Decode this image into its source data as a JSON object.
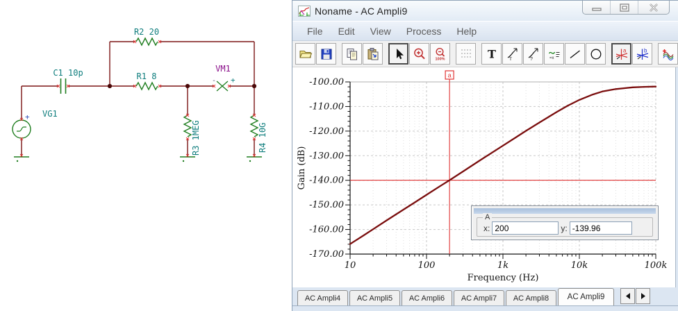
{
  "schematic": {
    "labels": {
      "c1": "C1 10p",
      "r1": "R1 8",
      "r2": "R2 20",
      "r3": "R3 1MEG",
      "r4": "R4 10G",
      "vg1": "VG1",
      "vm1": "VM1"
    },
    "colors": {
      "wire": "#7b1414",
      "component": "#1e7d1e",
      "label": "#0e7d7d",
      "meter_label": "#8a0f8a",
      "pin_marker": "#e03030",
      "junction": "#4a0808"
    }
  },
  "window": {
    "title": "Noname - AC Ampli9",
    "icon": "diagram-window-icon",
    "controls": [
      "minimize",
      "maximize",
      "close"
    ],
    "menu": [
      "File",
      "Edit",
      "View",
      "Process",
      "Help"
    ],
    "toolbar_groups": [
      [
        "open",
        "save"
      ],
      [
        "copy",
        "paste"
      ],
      [
        "select-arrow",
        "zoom-in",
        "zoom-out-100"
      ],
      [
        "grid"
      ],
      [
        "text-tool",
        "export-curve-t",
        "export-curve-q",
        "legend-tool",
        "line-tool",
        "ellipse-tool"
      ],
      [
        "cursor-a",
        "cursor-b"
      ],
      [
        "add-curve",
        "probe-pen"
      ],
      [
        "polyline-tool"
      ]
    ],
    "toolbar_active": [
      "select-arrow",
      "cursor-a"
    ]
  },
  "chart_data": {
    "type": "line",
    "title": "",
    "xlabel": "Frequency (Hz)",
    "ylabel": "Gain (dB)",
    "x_scale": "log",
    "xlim": [
      10,
      100000
    ],
    "ylim": [
      -170,
      -100
    ],
    "xticks": [
      {
        "v": 10,
        "label": "10"
      },
      {
        "v": 100,
        "label": "100"
      },
      {
        "v": 1000,
        "label": "1k"
      },
      {
        "v": 10000,
        "label": "10k"
      },
      {
        "v": 100000,
        "label": "100k"
      }
    ],
    "yticks": [
      "-100.00",
      "-110.00",
      "-120.00",
      "-130.00",
      "-140.00",
      "-150.00",
      "-160.00",
      "-170.00"
    ],
    "grid": true,
    "series": [
      {
        "name": "Gain",
        "color": "#7a0d0d",
        "points": [
          [
            10,
            -165.9
          ],
          [
            15,
            -162.4
          ],
          [
            20,
            -159.9
          ],
          [
            30,
            -156.3
          ],
          [
            50,
            -151.9
          ],
          [
            70,
            -149.0
          ],
          [
            100,
            -145.9
          ],
          [
            150,
            -142.4
          ],
          [
            200,
            -139.96
          ],
          [
            300,
            -136.4
          ],
          [
            500,
            -131.9
          ],
          [
            700,
            -129.0
          ],
          [
            1000,
            -125.9
          ],
          [
            1500,
            -122.4
          ],
          [
            2000,
            -119.9
          ],
          [
            3000,
            -116.5
          ],
          [
            5000,
            -112.3
          ],
          [
            7000,
            -109.7
          ],
          [
            10000,
            -107.3
          ],
          [
            15000,
            -105.1
          ],
          [
            20000,
            -103.9
          ],
          [
            30000,
            -102.9
          ],
          [
            50000,
            -102.2
          ],
          [
            70000,
            -102.0
          ],
          [
            100000,
            -101.9
          ]
        ]
      }
    ],
    "cursor": {
      "handle": "a",
      "x": 200,
      "y": -139.96,
      "color": "#e03434"
    }
  },
  "readout": {
    "group_label": "A",
    "x_label": "x:",
    "x_value": "200",
    "y_label": "y:",
    "y_value": "-139.96"
  },
  "tabs": {
    "items": [
      "AC Ampli4",
      "AC Ampli5",
      "AC Ampli6",
      "AC Ampli7",
      "AC Ampli8",
      "AC Ampli9"
    ],
    "active": "AC Ampli9",
    "scroll": [
      "left",
      "right"
    ]
  }
}
